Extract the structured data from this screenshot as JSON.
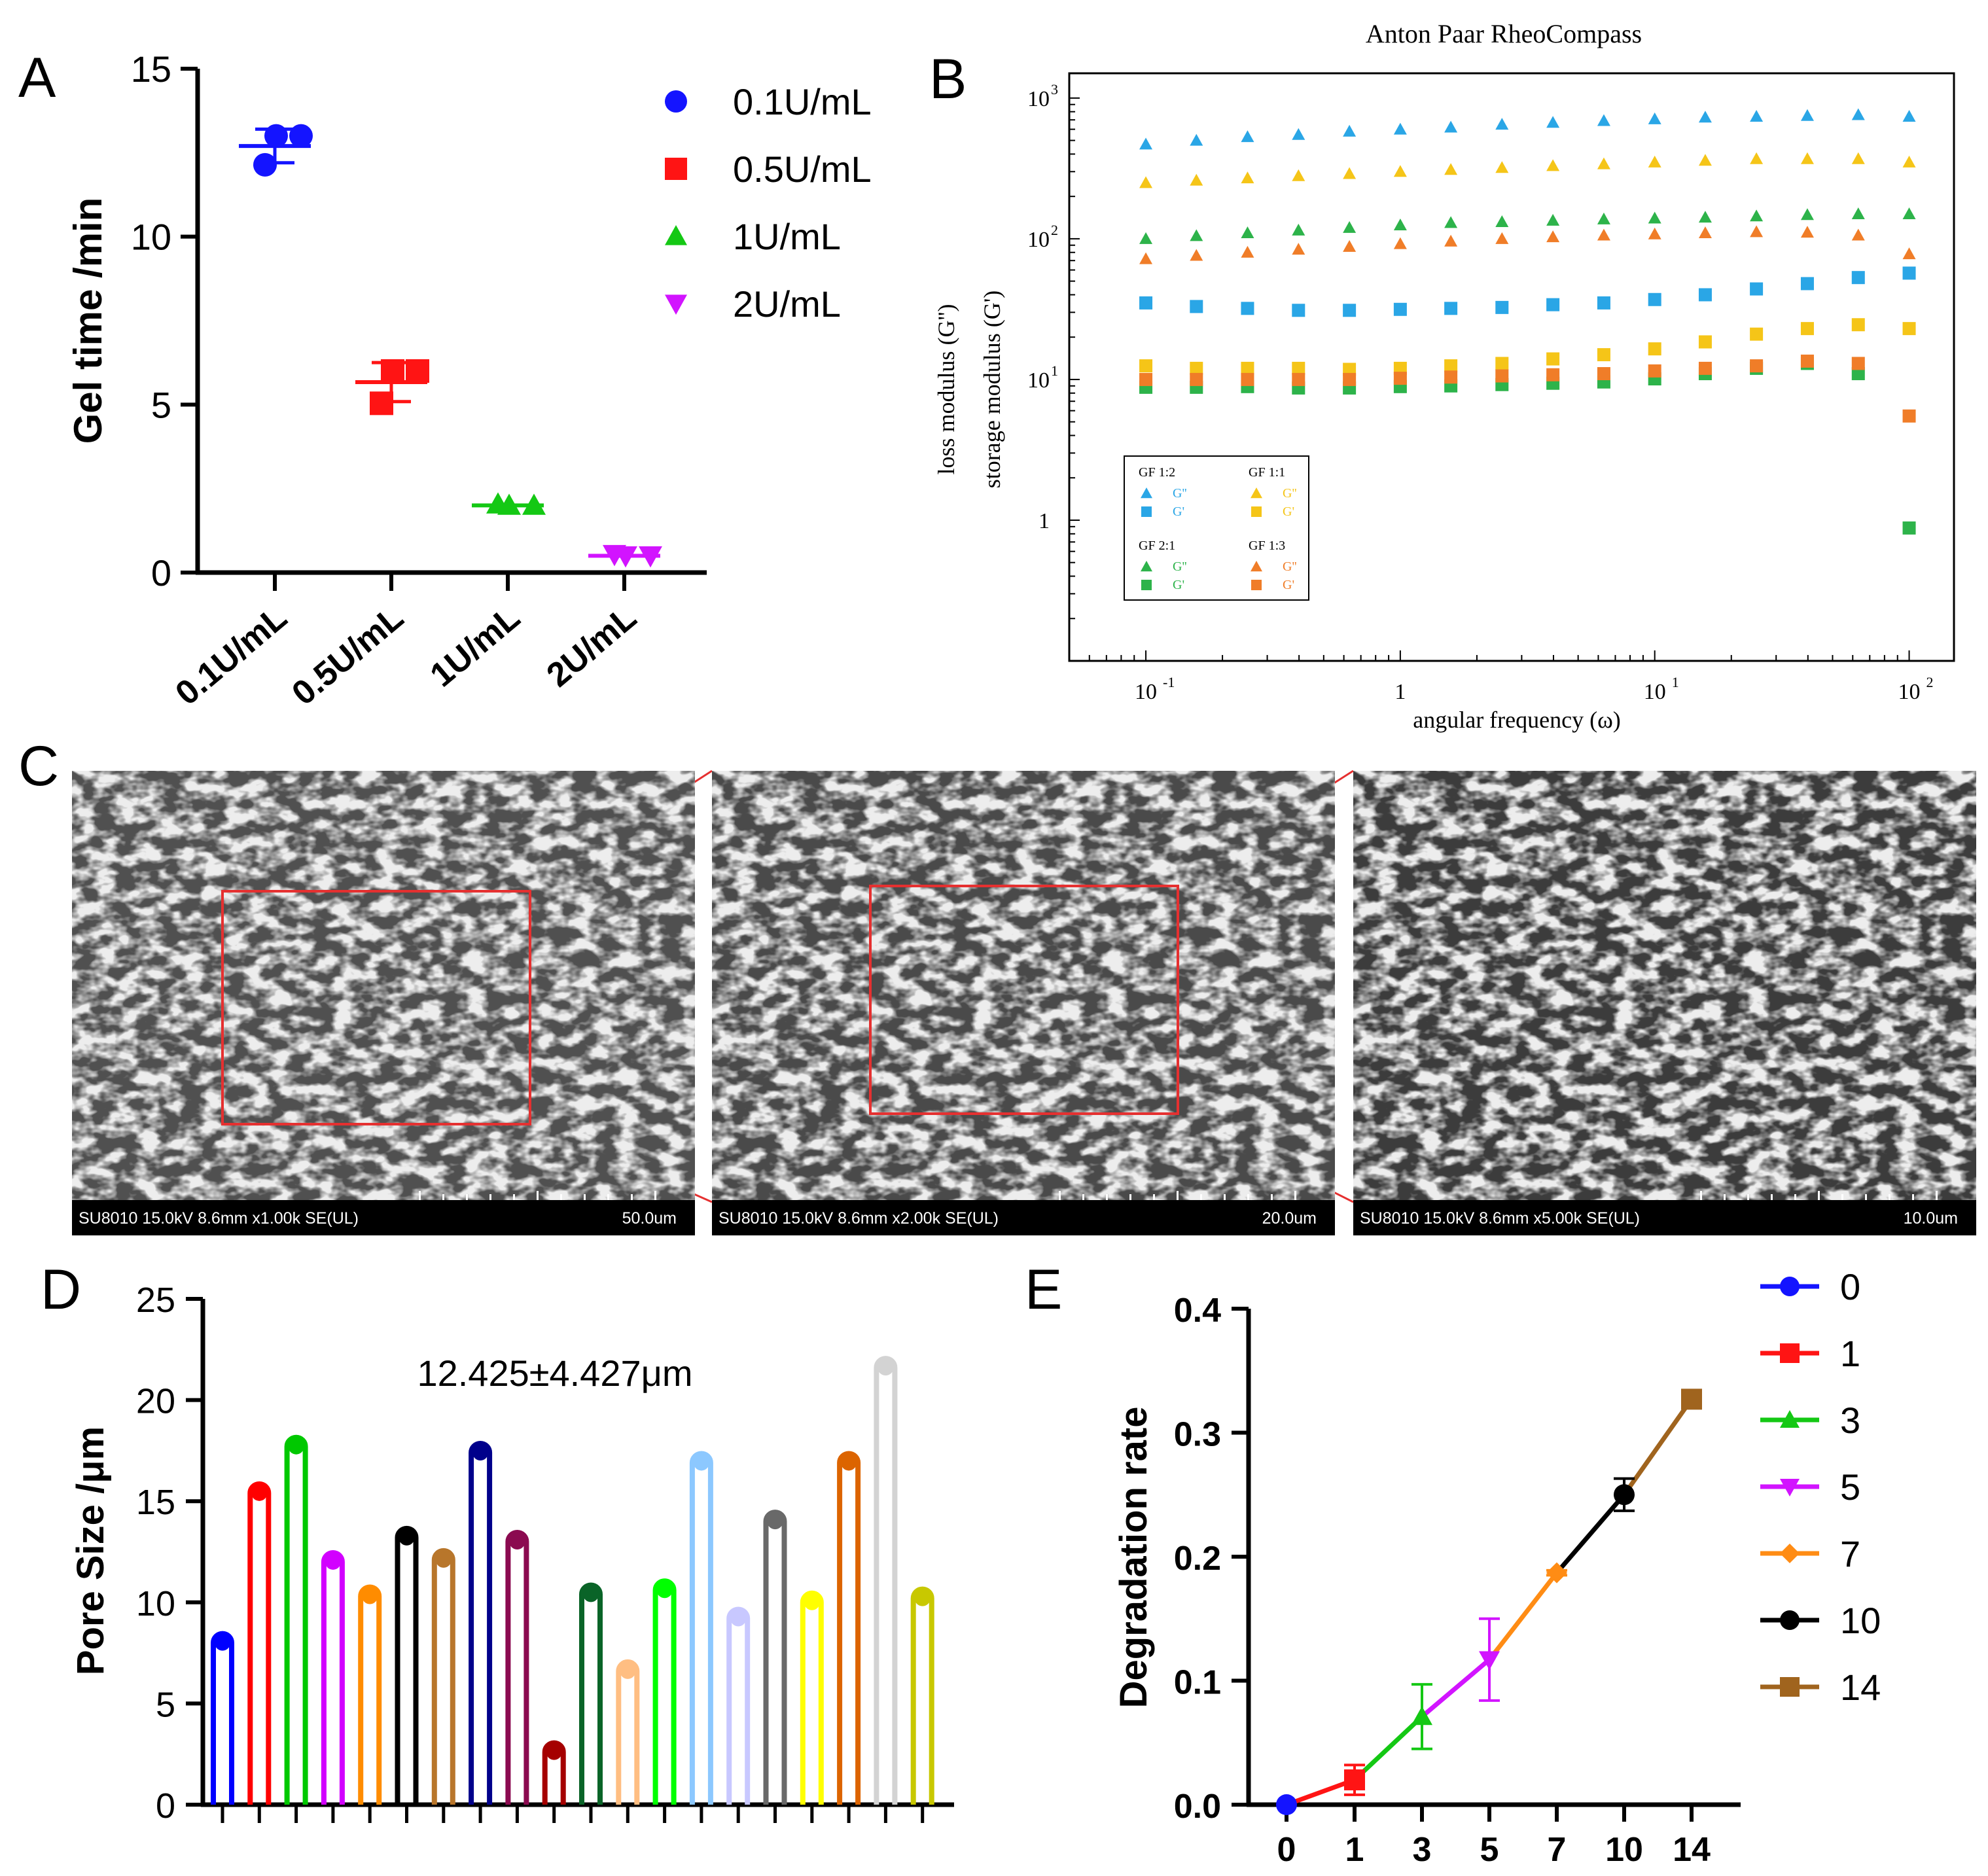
{
  "panel_labels": {
    "a": "A",
    "b": "B",
    "c": "C",
    "d": "D",
    "e": "E"
  },
  "colors": {
    "a_series": [
      "#1414ff",
      "#ff1414",
      "#14c814",
      "#d214ff"
    ],
    "b_G1_2": "#2aa6e6",
    "b_G1_1": "#f5c518",
    "b_G2_1": "#2db34a",
    "b_G1_3": "#f07d28",
    "d_bars": [
      "#0000ff",
      "#ff0000",
      "#00c800",
      "#d200ff",
      "#ff8c00",
      "#000000",
      "#b8762b",
      "#00008b",
      "#8b0a50",
      "#a50000",
      "#0a6428",
      "#ffbe82",
      "#00ff00",
      "#8cc8ff",
      "#c8c8ff",
      "#696969",
      "#ffff00",
      "#dc6400",
      "#d3d3d3",
      "#c8c800"
    ],
    "e_series": [
      "#1414ff",
      "#ff1414",
      "#14c814",
      "#d214ff",
      "#ff8c14",
      "#000000",
      "#a0641e"
    ]
  },
  "chart_data": [
    {
      "panel": "A",
      "type": "scatter",
      "title": "",
      "xlabel": "",
      "ylabel": "Gel time /min",
      "ylim": [
        0,
        15
      ],
      "yticks": [
        "0",
        "5",
        "10",
        "15"
      ],
      "categories": [
        "0.1U/mL",
        "0.5U/mL",
        "1U/mL",
        "2U/mL"
      ],
      "legend_position": "top-right",
      "series": [
        {
          "name": "0.1U/mL",
          "marker": "circle",
          "points": [
            12.1,
            13.0,
            13.0
          ],
          "mean": 12.7,
          "sd": 0.5
        },
        {
          "name": "0.5U/mL",
          "marker": "square",
          "points": [
            5.0,
            6.0,
            6.0
          ],
          "mean": 5.67,
          "sd": 0.58
        },
        {
          "name": "1U/mL",
          "marker": "triangle-up",
          "points": [
            2.0,
            2.0,
            2.0
          ],
          "mean": 2.0,
          "sd": 0.0
        },
        {
          "name": "2U/mL",
          "marker": "triangle-down",
          "points": [
            0.5,
            0.5,
            0.5
          ],
          "mean": 0.5,
          "sd": 0.0
        }
      ]
    },
    {
      "panel": "B",
      "type": "scatter",
      "title": "Anton Paar RheoCompass",
      "xlabel": "angular frequency (ω)",
      "ylabel_line1": "loss modulus (G'')",
      "ylabel_line2": "storage modulus (G')",
      "xscale": "log",
      "yscale": "log",
      "xlim": [
        0.05,
        150
      ],
      "ylim": [
        0.1,
        1500
      ],
      "xticks": [
        {
          "value": 0.1,
          "base": "10",
          "exp": "-1"
        },
        {
          "value": 1,
          "base": "1",
          "exp": ""
        },
        {
          "value": 10,
          "base": "10",
          "exp": "1"
        },
        {
          "value": 100,
          "base": "10",
          "exp": "2"
        }
      ],
      "yticks": [
        {
          "value": 1,
          "base": "1",
          "exp": ""
        },
        {
          "value": 10,
          "base": "10",
          "exp": "1"
        },
        {
          "value": 100,
          "base": "10",
          "exp": "2"
        },
        {
          "value": 1000,
          "base": "10",
          "exp": "3"
        }
      ],
      "x": [
        0.1,
        0.158,
        0.251,
        0.398,
        0.631,
        1,
        1.58,
        2.51,
        3.98,
        6.31,
        10,
        15.8,
        25.1,
        39.8,
        63.1,
        100
      ],
      "legend": {
        "groups": [
          {
            "title": "GF 1:2",
            "color_key": "b_G1_2"
          },
          {
            "title": "GF 1:1",
            "color_key": "b_G1_1"
          },
          {
            "title": "GF 2:1",
            "color_key": "b_G2_1"
          },
          {
            "title": "GF 1:3",
            "color_key": "b_G1_3"
          }
        ],
        "entries": [
          "G''",
          "G'"
        ]
      },
      "series": [
        {
          "name": "GF 1:2 G''",
          "color_key": "b_G1_2",
          "marker": "triangle",
          "values": [
            470,
            500,
            530,
            550,
            580,
            600,
            620,
            650,
            670,
            690,
            710,
            730,
            740,
            750,
            760,
            740
          ]
        },
        {
          "name": "GF 1:2 G'",
          "color_key": "b_G1_2",
          "marker": "square",
          "values": [
            35,
            33,
            32,
            31,
            31,
            31.5,
            32,
            32.5,
            34,
            35,
            37,
            40,
            44,
            48,
            53,
            57
          ]
        },
        {
          "name": "GF 1:1 G''",
          "color_key": "b_G1_1",
          "marker": "triangle",
          "values": [
            250,
            260,
            270,
            280,
            290,
            300,
            310,
            320,
            330,
            340,
            350,
            360,
            370,
            370,
            370,
            350
          ]
        },
        {
          "name": "GF 1:1 G'",
          "color_key": "b_G1_1",
          "marker": "square",
          "values": [
            12.5,
            12,
            12,
            12,
            11.8,
            12,
            12.5,
            13,
            14,
            15,
            16.5,
            18.5,
            21,
            23,
            24.5,
            23
          ]
        },
        {
          "name": "GF 2:1 G''",
          "color_key": "b_G2_1",
          "marker": "triangle",
          "values": [
            100,
            105,
            110,
            115,
            120,
            125,
            130,
            132,
            135,
            138,
            140,
            142,
            145,
            148,
            150,
            150
          ]
        },
        {
          "name": "GF 2:1 G'",
          "color_key": "b_G2_1",
          "marker": "square",
          "values": [
            8.8,
            8.8,
            8.9,
            8.7,
            8.7,
            8.9,
            9.0,
            9.2,
            9.4,
            9.6,
            10.1,
            11.0,
            12.0,
            13.0,
            11.0,
            0.88
          ]
        },
        {
          "name": "GF 1:3 G''",
          "color_key": "b_G1_3",
          "marker": "triangle",
          "values": [
            72,
            76,
            80,
            84,
            88,
            92,
            96,
            100,
            103,
            106,
            108,
            110,
            112,
            111,
            106,
            78
          ]
        },
        {
          "name": "GF 1:3 G'",
          "color_key": "b_G1_3",
          "marker": "square",
          "values": [
            10,
            10,
            10,
            10,
            10,
            10.2,
            10.4,
            10.6,
            10.8,
            11,
            11.5,
            12,
            12.5,
            13.5,
            13,
            5.5
          ]
        }
      ]
    },
    {
      "panel": "D",
      "type": "bar",
      "title": "12.425±4.427μm",
      "xlabel": "",
      "ylabel": "Pore Size /μm",
      "ylim": [
        0,
        25
      ],
      "yticks": [
        "0",
        "5",
        "10",
        "15",
        "20",
        "25"
      ],
      "values": [
        8.0,
        15.4,
        17.7,
        12.0,
        10.3,
        13.2,
        12.1,
        17.4,
        13.0,
        2.6,
        10.4,
        6.6,
        10.6,
        16.9,
        9.2,
        14.0,
        10.0,
        16.9,
        21.6,
        10.2
      ]
    },
    {
      "panel": "E",
      "type": "line",
      "title": "",
      "xlabel": "",
      "ylabel": "Degradation rate",
      "ylim": [
        0,
        0.4
      ],
      "yticks": [
        "0.0",
        "0.1",
        "0.2",
        "0.3",
        "0.4"
      ],
      "categories": [
        "0",
        "1",
        "3",
        "5",
        "7",
        "10",
        "14"
      ],
      "legend_position": "top-right",
      "series": [
        {
          "name": "0",
          "marker": "circle",
          "value": 0.0,
          "err": 0.0
        },
        {
          "name": "1",
          "marker": "square",
          "value": 0.02,
          "err": 0.012
        },
        {
          "name": "3",
          "marker": "triangle-up",
          "value": 0.071,
          "err": 0.026
        },
        {
          "name": "5",
          "marker": "triangle-down",
          "value": 0.117,
          "err": 0.033
        },
        {
          "name": "7",
          "marker": "diamond",
          "value": 0.187,
          "err": 0.002
        },
        {
          "name": "10",
          "marker": "circle",
          "value": 0.25,
          "err": 0.013
        },
        {
          "name": "14",
          "marker": "square",
          "value": 0.327,
          "err": 0.004
        }
      ]
    }
  ],
  "sem_panels": [
    {
      "info": "SU8010 15.0kV 8.6mm x1.00k SE(UL)",
      "scale": "50.0um"
    },
    {
      "info": "SU8010 15.0kV 8.6mm x2.00k SE(UL)",
      "scale": "20.0um"
    },
    {
      "info": "SU8010 15.0kV 8.6mm x5.00k SE(UL)",
      "scale": "10.0um"
    }
  ]
}
